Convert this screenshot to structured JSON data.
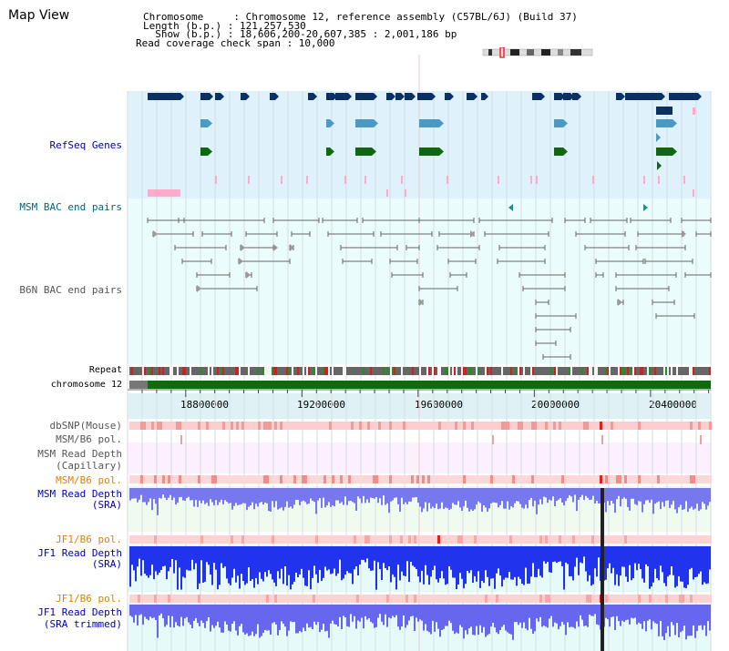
{
  "title": "Map View",
  "info": {
    "chromosome": "Chromosome     : Chromosome 12, reference assembly (C57BL/6J) (Build 37)",
    "length": "Length (b.p.) : 121,257,530",
    "show": "  Show (b.p.) : 18,606,200-20,607,385 : 2,001,186 bp",
    "coverage": "Read coverage check span : 10,000"
  },
  "labels": {
    "refseq": "RefSeq Genes",
    "msm_bac": "MSM BAC end pairs",
    "b6n_bac": "B6N BAC end pairs",
    "repeat": "Repeat",
    "chromosome": "chromosome 12",
    "dbsnp": "dbSNP(Mouse)",
    "msm_pol1": "MSM/B6 pol.",
    "msm_rd_cap_1": "MSM Read Depth",
    "msm_rd_cap_2": "(Capillary)",
    "msm_pol2": "MSM/B6 pol.",
    "msm_rd_sra_1": "MSM Read Depth",
    "msm_rd_sra_2": "(SRA)",
    "jf1_pol1": "JF1/B6 pol.",
    "jf1_rd_1": "JF1 Read Depth",
    "jf1_rd_2": "(SRA)",
    "jf1_pol2": "JF1/B6 pol.",
    "jf1_rdt_1": "JF1 Read Depth",
    "jf1_rdt_2": "(SRA trimmed)"
  },
  "axis": {
    "range": [
      18606200,
      20607385
    ],
    "ticks": [
      18800000,
      19200000,
      19600000,
      20000000,
      20400000
    ],
    "tick_labels": [
      "18800000",
      "19200000",
      "19600000",
      "20000000",
      "20400000"
    ]
  },
  "colors": {
    "refseq_bg": "#dff1fb",
    "bac_bg": "#e8fbfb",
    "gene_dark": "#0a3064",
    "gene_mid": "#4a9ac4",
    "gene_green": "#116611",
    "snp": "#ffaacc",
    "chrom": "#0b6e0b",
    "msm_depth": "#7777ee",
    "jf1_depth": "#2233ee",
    "label_blue": "#0000aa",
    "label_orange": "#e08000",
    "label_teal": "#006677"
  }
}
